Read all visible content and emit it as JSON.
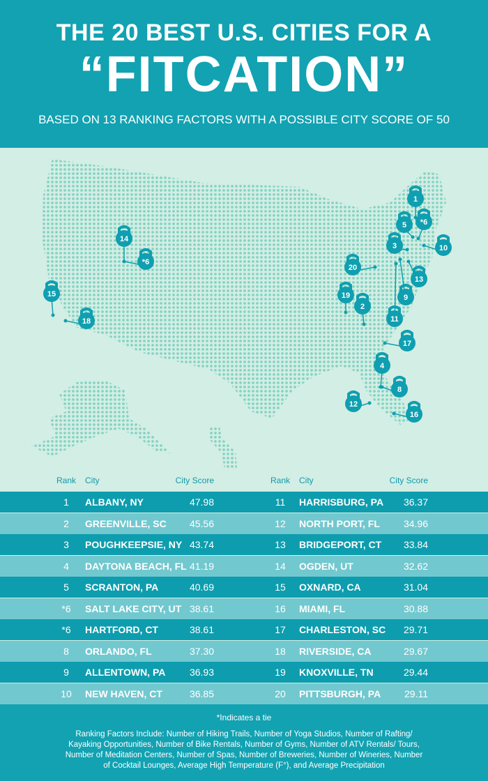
{
  "header": {
    "title_line1": "THE 20 BEST U.S. CITIES FOR A",
    "title_line2": "“FITCATION”",
    "subtitle": "BASED ON 13 RANKING FACTORS WITH A POSSIBLE CITY SCORE OF 50"
  },
  "map": {
    "markers": [
      "1",
      "5",
      "*6",
      "3",
      "10",
      "20",
      "13",
      "19",
      "9",
      "2",
      "11",
      "17",
      "4",
      "8",
      "12",
      "16",
      "14",
      "*6",
      "15",
      "18"
    ]
  },
  "table": {
    "columns": [
      "Rank",
      "City",
      "City Score"
    ],
    "rows": [
      [
        "1",
        "ALBANY, NY",
        "47.98"
      ],
      [
        "2",
        "GREENVILLE, SC",
        "45.56"
      ],
      [
        "3",
        "POUGHKEEPSIE, NY",
        "43.74"
      ],
      [
        "4",
        "DAYTONA BEACH, FL",
        "41.19"
      ],
      [
        "5",
        "SCRANTON, PA",
        "40.69"
      ],
      [
        "*6",
        "SALT LAKE CITY, UT",
        "38.61"
      ],
      [
        "*6",
        "HARTFORD, CT",
        "38.61"
      ],
      [
        "8",
        "ORLANDO, FL",
        "37.30"
      ],
      [
        "9",
        "ALLENTOWN, PA",
        "36.93"
      ],
      [
        "10",
        "NEW HAVEN, CT",
        "36.85"
      ],
      [
        "11",
        "HARRISBURG, PA",
        "36.37"
      ],
      [
        "12",
        "NORTH PORT, FL",
        "34.96"
      ],
      [
        "13",
        "BRIDGEPORT, CT",
        "33.84"
      ],
      [
        "14",
        "OGDEN, UT",
        "32.62"
      ],
      [
        "15",
        "OXNARD, CA",
        "31.04"
      ],
      [
        "16",
        "MIAMI, FL",
        "30.88"
      ],
      [
        "17",
        "CHARLESTON, SC",
        "29.71"
      ],
      [
        "18",
        "RIVERSIDE, CA",
        "29.67"
      ],
      [
        "19",
        "KNOXVILLE, TN",
        "29.44"
      ],
      [
        "20",
        "PITTSBURGH, PA",
        "29.11"
      ]
    ]
  },
  "footer": {
    "note": "*Indicates a tie",
    "factors": "Ranking Factors Include: Number of Hiking Trails, Number of Yoga Studios, Number of Rafting/ Kayaking Opportunities, Number of Bike Rentals, Number of Gyms, Number of ATV Rentals/ Tours, Number of Meditation Centers, Number of Spas, Number of Breweries, Number of Wineries, Number of Cocktail Lounges, Average High Temperature (F°), and Average Precipitation"
  }
}
